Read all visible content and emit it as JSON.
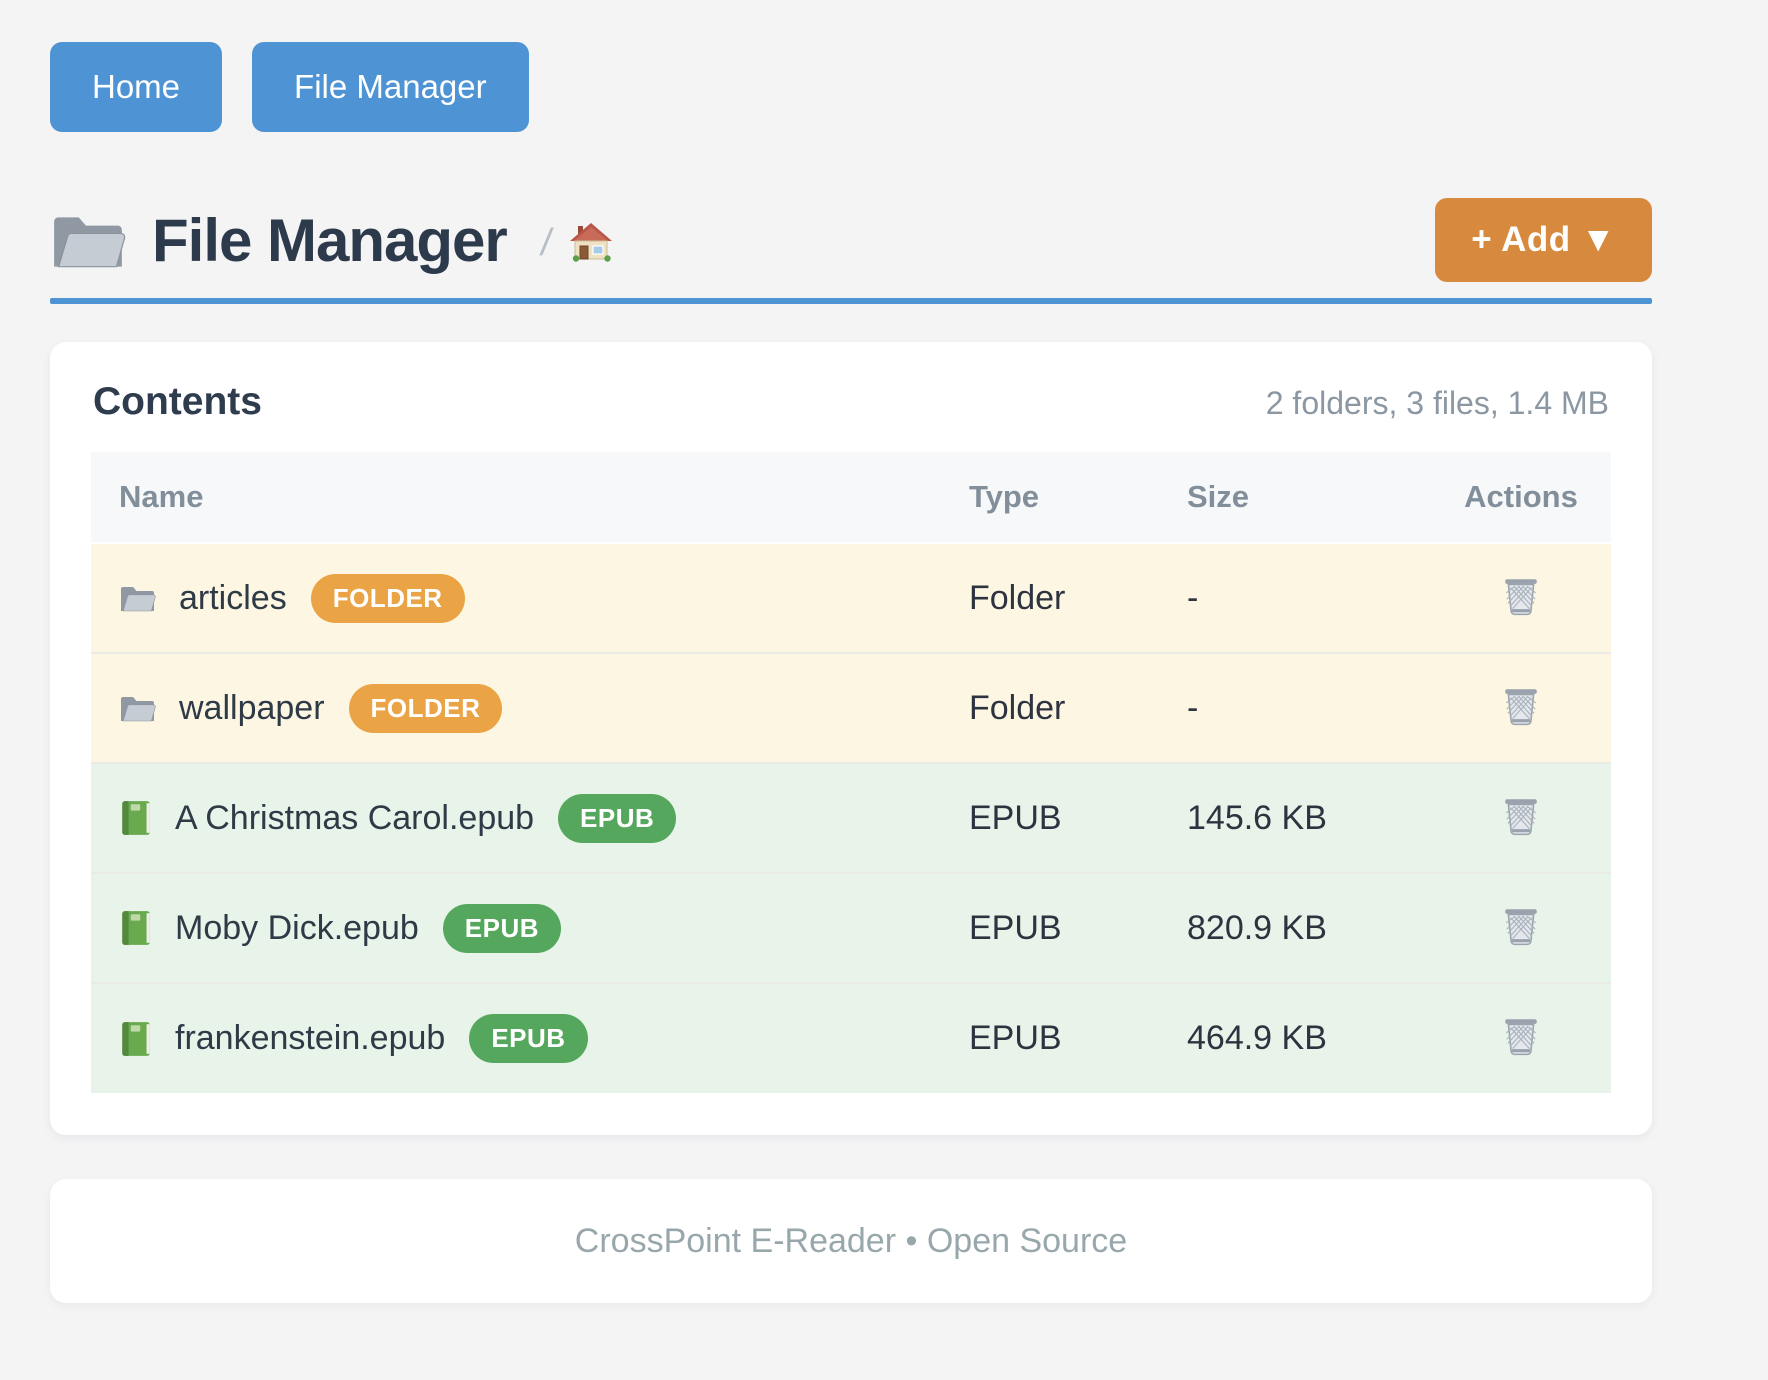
{
  "nav": {
    "buttons": [
      {
        "label": "Home"
      },
      {
        "label": "File Manager"
      }
    ]
  },
  "header": {
    "title": "File Manager",
    "title_icon": "folder-icon",
    "breadcrumb_separator": "/",
    "breadcrumb_home_icon": "home-icon",
    "add_button_label": "+ Add ▼"
  },
  "contents_card": {
    "title": "Contents",
    "summary": "2 folders, 3 files, 1.4 MB",
    "table": {
      "headers": [
        "Name",
        "Type",
        "Size",
        "Actions"
      ],
      "rows": [
        {
          "name": "articles",
          "icon": "folder-icon",
          "badge": "FOLDER",
          "kind": "folder",
          "type": "Folder",
          "size": "-",
          "action_icon": "wastebasket-icon"
        },
        {
          "name": "wallpaper",
          "icon": "folder-icon",
          "badge": "FOLDER",
          "kind": "folder",
          "type": "Folder",
          "size": "-",
          "action_icon": "wastebasket-icon"
        },
        {
          "name": "A Christmas Carol.epub",
          "icon": "green-book-icon",
          "badge": "EPUB",
          "kind": "epub",
          "type": "EPUB",
          "size": "145.6 KB",
          "action_icon": "wastebasket-icon"
        },
        {
          "name": "Moby Dick.epub",
          "icon": "green-book-icon",
          "badge": "EPUB",
          "kind": "epub",
          "type": "EPUB",
          "size": "820.9 KB",
          "action_icon": "wastebasket-icon"
        },
        {
          "name": "frankenstein.epub",
          "icon": "green-book-icon",
          "badge": "EPUB",
          "kind": "epub",
          "type": "EPUB",
          "size": "464.9 KB",
          "action_icon": "wastebasket-icon"
        }
      ]
    }
  },
  "footer": {
    "text": "CrossPoint E-Reader • Open Source"
  },
  "colors": {
    "page_background": "#f4f4f5",
    "accent_blue": "#4e94d5",
    "accent_orange": "#d7893e",
    "badge_folder_orange": "#eaa446",
    "badge_epub_green": "#56a75e",
    "row_folder_background": "#fdf6e3",
    "row_epub_background": "#e8f3ea",
    "title_text": "#2c3a4c",
    "muted_text": "#8b97a2"
  }
}
